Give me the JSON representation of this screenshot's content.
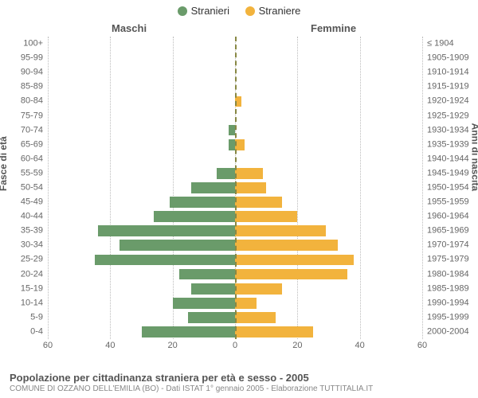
{
  "legend": {
    "male": {
      "label": "Stranieri",
      "color": "#6a9b6a"
    },
    "female": {
      "label": "Straniere",
      "color": "#f2b33d"
    }
  },
  "headers": {
    "male": "Maschi",
    "female": "Femmine"
  },
  "axis_labels": {
    "left": "Fasce di età",
    "right": "Anni di nascita"
  },
  "chart": {
    "type": "population-pyramid",
    "x_max": 60,
    "x_tick_step": 20,
    "grid_color": "#bbbbbb",
    "center_line_color": "#888844",
    "bar_fill_ratio": 0.76,
    "age_bands": [
      {
        "age": "100+",
        "cohort": "≤ 1904",
        "male": 0,
        "female": 0
      },
      {
        "age": "95-99",
        "cohort": "1905-1909",
        "male": 0,
        "female": 0
      },
      {
        "age": "90-94",
        "cohort": "1910-1914",
        "male": 0,
        "female": 0
      },
      {
        "age": "85-89",
        "cohort": "1915-1919",
        "male": 0,
        "female": 0
      },
      {
        "age": "80-84",
        "cohort": "1920-1924",
        "male": 0,
        "female": 2
      },
      {
        "age": "75-79",
        "cohort": "1925-1929",
        "male": 0,
        "female": 0
      },
      {
        "age": "70-74",
        "cohort": "1930-1934",
        "male": 2,
        "female": 0
      },
      {
        "age": "65-69",
        "cohort": "1935-1939",
        "male": 2,
        "female": 3
      },
      {
        "age": "60-64",
        "cohort": "1940-1944",
        "male": 0,
        "female": 0
      },
      {
        "age": "55-59",
        "cohort": "1945-1949",
        "male": 6,
        "female": 9
      },
      {
        "age": "50-54",
        "cohort": "1950-1954",
        "male": 14,
        "female": 10
      },
      {
        "age": "45-49",
        "cohort": "1955-1959",
        "male": 21,
        "female": 15
      },
      {
        "age": "40-44",
        "cohort": "1960-1964",
        "male": 26,
        "female": 20
      },
      {
        "age": "35-39",
        "cohort": "1965-1969",
        "male": 44,
        "female": 29
      },
      {
        "age": "30-34",
        "cohort": "1970-1974",
        "male": 37,
        "female": 33
      },
      {
        "age": "25-29",
        "cohort": "1975-1979",
        "male": 45,
        "female": 38
      },
      {
        "age": "20-24",
        "cohort": "1980-1984",
        "male": 18,
        "female": 36
      },
      {
        "age": "15-19",
        "cohort": "1985-1989",
        "male": 14,
        "female": 15
      },
      {
        "age": "10-14",
        "cohort": "1990-1994",
        "male": 20,
        "female": 7
      },
      {
        "age": "5-9",
        "cohort": "1995-1999",
        "male": 15,
        "female": 13
      },
      {
        "age": "0-4",
        "cohort": "2000-2004",
        "male": 30,
        "female": 25
      }
    ],
    "x_ticks_left": [
      60,
      40,
      20,
      0
    ],
    "x_ticks_right": [
      20,
      40,
      60
    ]
  },
  "footer": {
    "title": "Popolazione per cittadinanza straniera per età e sesso - 2005",
    "subtitle": "COMUNE DI OZZANO DELL'EMILIA (BO) - Dati ISTAT 1° gennaio 2005 - Elaborazione TUTTITALIA.IT"
  },
  "colors": {
    "background": "#ffffff",
    "text": "#555555",
    "tick_text": "#666666"
  }
}
